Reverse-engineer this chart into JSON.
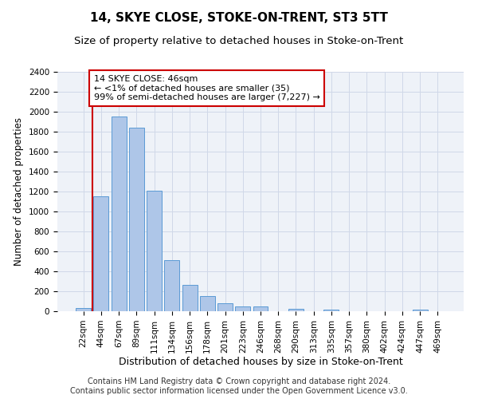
{
  "title1": "14, SKYE CLOSE, STOKE-ON-TRENT, ST3 5TT",
  "title2": "Size of property relative to detached houses in Stoke-on-Trent",
  "xlabel": "Distribution of detached houses by size in Stoke-on-Trent",
  "ylabel": "Number of detached properties",
  "categories": [
    "22sqm",
    "44sqm",
    "67sqm",
    "89sqm",
    "111sqm",
    "134sqm",
    "156sqm",
    "178sqm",
    "201sqm",
    "223sqm",
    "246sqm",
    "268sqm",
    "290sqm",
    "313sqm",
    "335sqm",
    "357sqm",
    "380sqm",
    "402sqm",
    "424sqm",
    "447sqm",
    "469sqm"
  ],
  "values": [
    30,
    1150,
    1950,
    1840,
    1210,
    510,
    265,
    155,
    80,
    50,
    45,
    0,
    25,
    0,
    20,
    0,
    0,
    0,
    0,
    20,
    0
  ],
  "bar_color": "#aec6e8",
  "bar_edge_color": "#5b9bd5",
  "highlight_color": "#cc0000",
  "annotation_text": "14 SKYE CLOSE: 46sqm\n← <1% of detached houses are smaller (35)\n99% of semi-detached houses are larger (7,227) →",
  "annotation_box_color": "#ffffff",
  "annotation_box_edge": "#cc0000",
  "ylim": [
    0,
    2400
  ],
  "yticks": [
    0,
    200,
    400,
    600,
    800,
    1000,
    1200,
    1400,
    1600,
    1800,
    2000,
    2200,
    2400
  ],
  "footer1": "Contains HM Land Registry data © Crown copyright and database right 2024.",
  "footer2": "Contains public sector information licensed under the Open Government Licence v3.0.",
  "grid_color": "#d0d8e8",
  "bg_color": "#eef2f8",
  "title1_fontsize": 11,
  "title2_fontsize": 9.5,
  "xlabel_fontsize": 9,
  "ylabel_fontsize": 8.5,
  "tick_fontsize": 7.5,
  "footer_fontsize": 7,
  "annot_fontsize": 8
}
